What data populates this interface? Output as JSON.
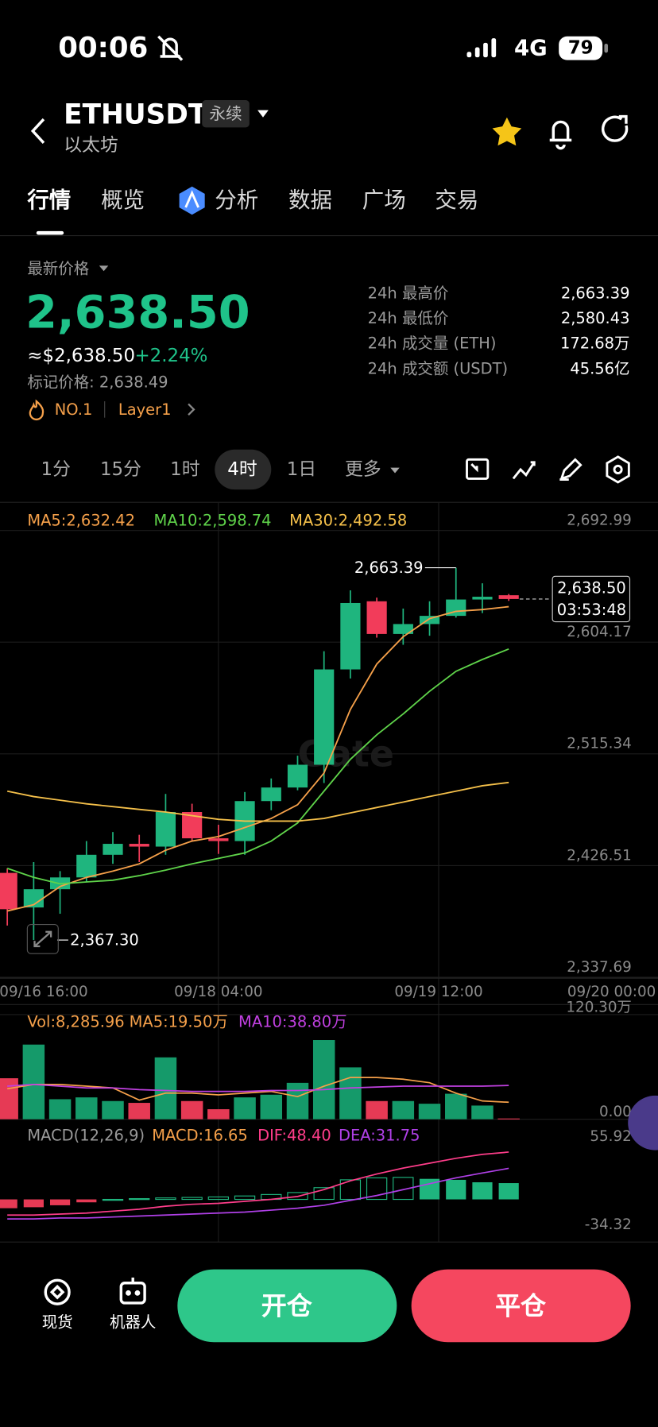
{
  "status_bar": {
    "time": "00:06",
    "network": "4G",
    "battery": "79"
  },
  "header": {
    "symbol": "ETHUSDT",
    "badge": "永续",
    "name": "以太坊"
  },
  "tabs": [
    "行情",
    "概览",
    "分析",
    "数据",
    "广场",
    "交易"
  ],
  "price": {
    "label": "最新价格",
    "last": "2,638.50",
    "usd": "≈$2,638.50",
    "change": "+2.24%",
    "mark": "标记价格: 2,638.49",
    "tags": [
      "NO.1",
      "Layer1"
    ],
    "stats": [
      [
        "24h 最高价",
        "2,663.39"
      ],
      [
        "24h 最低价",
        "2,580.43"
      ],
      [
        "24h 成交量 (ETH)",
        "172.68万"
      ],
      [
        "24h 成交额 (USDT)",
        "45.56亿"
      ]
    ]
  },
  "intervals": [
    "1分",
    "15分",
    "1时",
    "4时",
    "1日",
    "更多"
  ],
  "active_interval": 3,
  "chart_data": [
    {
      "type": "candlestick",
      "watermark": "Gate",
      "up_color": "#1fb57e",
      "down_color": "#f23c5a",
      "ylim": [
        2337.69,
        2692.99
      ],
      "yticks": [
        {
          "value": 2692.99,
          "label": "2,692.99"
        },
        {
          "value": 2604.17,
          "label": "2,604.17"
        },
        {
          "value": 2515.34,
          "label": "2,515.34"
        },
        {
          "value": 2426.51,
          "label": "2,426.51"
        },
        {
          "value": 2337.69,
          "label": "2,337.69"
        }
      ],
      "xtick_labels": [
        "09/16 16:00",
        "09/18 04:00",
        "09/19 12:00",
        "09/20 00:00"
      ],
      "open": [
        2420.7,
        2393.2,
        2407.7,
        2417.1,
        2435.1,
        2443.8,
        2441.6,
        2469.1,
        2448.2,
        2446.0,
        2477.8,
        2488.6,
        2506.7,
        2582.5,
        2636.7,
        2610.7,
        2618.6,
        2625.1,
        2638.1,
        2641.5
      ],
      "high": [
        2424.3,
        2429.3,
        2422.1,
        2446.0,
        2453.2,
        2451.0,
        2483.5,
        2475.7,
        2459.0,
        2485.0,
        2495.8,
        2513.9,
        2597.0,
        2645.4,
        2639.6,
        2630.9,
        2636.7,
        2663.39,
        2651.0,
        2642.5
      ],
      "low": [
        2378.8,
        2367.3,
        2388.2,
        2413.5,
        2427.9,
        2429.3,
        2435.1,
        2446.0,
        2435.8,
        2435.1,
        2470.5,
        2486.4,
        2492.2,
        2575.3,
        2607.8,
        2602.1,
        2609.3,
        2623.7,
        2627.3,
        2637.0
      ],
      "close": [
        2391.8,
        2407.7,
        2417.1,
        2435.1,
        2443.8,
        2441.6,
        2469.1,
        2448.2,
        2446.0,
        2477.8,
        2488.6,
        2506.7,
        2582.5,
        2635.3,
        2610.7,
        2618.6,
        2625.1,
        2638.1,
        2640.3,
        2638.5
      ],
      "series": [
        {
          "name": "MA5:2,632.42",
          "color": "#f5a04a",
          "values": [
            2390.4,
            2395.4,
            2409.9,
            2417.1,
            2422.1,
            2427.9,
            2438.7,
            2446.0,
            2449.6,
            2456.8,
            2464.0,
            2474.9,
            2500.1,
            2550.7,
            2586.8,
            2608.5,
            2622.9,
            2628.7,
            2630.1,
            2632.42
          ]
        },
        {
          "name": "MA10:2,598.74",
          "color": "#5fd34a",
          "values": [
            2424.3,
            2417.1,
            2412.0,
            2413.5,
            2414.9,
            2418.5,
            2422.9,
            2427.9,
            2432.2,
            2436.6,
            2446.0,
            2460.4,
            2485.7,
            2511.0,
            2530.5,
            2547.1,
            2565.1,
            2581.0,
            2590.4,
            2598.74
          ]
        },
        {
          "name": "MA30:2,492.58",
          "color": "#f5c04a",
          "values": [
            2485.7,
            2481.4,
            2478.5,
            2475.6,
            2473.4,
            2471.2,
            2469.1,
            2466.2,
            2463.3,
            2461.9,
            2461.9,
            2461.9,
            2464.0,
            2468.4,
            2472.7,
            2477.0,
            2481.4,
            2485.7,
            2490.0,
            2492.58
          ]
        }
      ],
      "annotations": [
        {
          "value": 2663.39,
          "label": "2,663.39"
        },
        {
          "value": 2367.3,
          "label": "2,367.30"
        }
      ],
      "last_price": {
        "value": 2638.5,
        "label": "2,638.50"
      },
      "countdown": "03:53:48"
    },
    {
      "type": "volume",
      "title": "Vol:8,285.96",
      "ylim": [
        0,
        120.3
      ],
      "yticks": [
        {
          "value": 120.3,
          "label": "120.30万"
        },
        {
          "value": 0,
          "label": "0.00"
        }
      ],
      "values": [
        47.1,
        85.8,
        23.0,
        25.1,
        20.9,
        18.8,
        71.1,
        20.9,
        11.5,
        25.1,
        28.2,
        41.8,
        91.0,
        59.6,
        20.9,
        20.9,
        17.8,
        29.3,
        15.7,
        0.8286
      ],
      "series": [
        {
          "name": "MA5:19.50万",
          "color": "#f5a04a",
          "values": [
            35,
            40,
            40,
            38,
            36,
            22,
            30,
            30,
            28,
            30,
            32,
            26,
            38,
            48,
            48,
            46,
            42,
            30,
            21,
            19.5
          ]
        },
        {
          "name": "MA10:38.80万",
          "color": "#c040e0",
          "values": [
            38,
            40,
            38,
            36,
            36,
            34,
            33,
            32,
            32,
            32,
            33,
            33,
            34,
            36,
            37,
            38,
            38,
            38,
            38,
            38.8
          ]
        }
      ]
    },
    {
      "type": "macd",
      "title": "MACD(12,26,9)",
      "histogram_name": "MACD:16.65",
      "histogram_color": "#f5a04a",
      "ylim": [
        -34.32,
        55.92
      ],
      "yticks": [
        55.92,
        -34.32
      ],
      "values": [
        -9,
        -8,
        -6,
        -3,
        0,
        0.8,
        1.5,
        2,
        2.5,
        3.5,
        5,
        7,
        12,
        20,
        22,
        22.5,
        21,
        20,
        17.5,
        16.65
      ],
      "series": [
        {
          "name": "DIF:48.40",
          "color": "#ff3d8a",
          "values": [
            -16,
            -16,
            -15,
            -14,
            -12,
            -10,
            -7,
            -5,
            -4,
            -2,
            0,
            3,
            10,
            19,
            26,
            32,
            37,
            42,
            46,
            48.4
          ]
        },
        {
          "name": "DEA:31.75",
          "color": "#b040e8",
          "values": [
            -20,
            -20,
            -19,
            -19,
            -18,
            -17,
            -16,
            -15,
            -14,
            -13,
            -11,
            -9,
            -6,
            -1,
            4,
            10,
            16,
            22,
            27,
            31.75
          ]
        }
      ]
    }
  ],
  "bottom": {
    "spot": "现货",
    "bot": "机器人",
    "open": "开仓",
    "close": "平仓"
  }
}
